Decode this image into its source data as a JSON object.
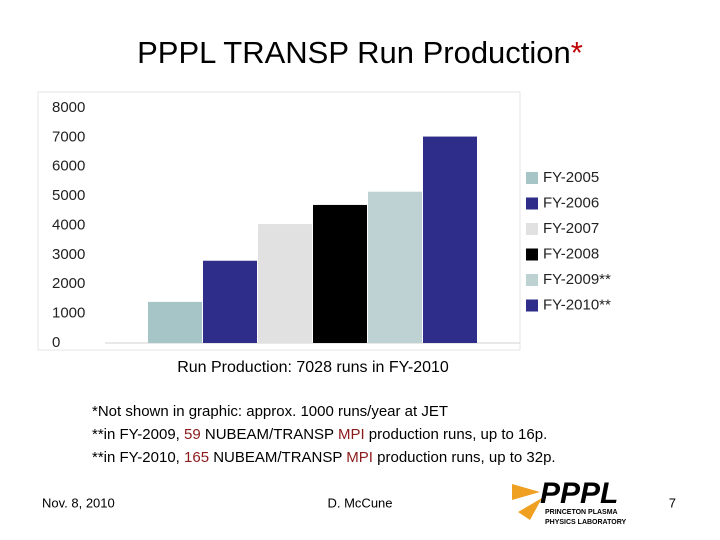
{
  "title": "PPPL TRANSP Run Production",
  "title_mark": "*",
  "title_mark_color": "#c00000",
  "chart_data": {
    "type": "bar",
    "x_label": "Run Production: 7028 runs in FY-2010",
    "series": [
      {
        "name": "FY-2005",
        "color": "#a5c5c7",
        "values": [
          1400
        ]
      },
      {
        "name": "FY-2006",
        "color": "#2e2e8a",
        "values": [
          2800
        ]
      },
      {
        "name": "FY-2007",
        "color": "#e1e1e1",
        "values": [
          4050
        ]
      },
      {
        "name": "FY-2008",
        "color": "#000000",
        "values": [
          4700
        ]
      },
      {
        "name": "FY-2009**",
        "color": "#bed2d4",
        "values": [
          5150
        ]
      },
      {
        "name": "FY-2010**",
        "color": "#2e2e8a",
        "values": [
          7028
        ]
      }
    ],
    "ylim": [
      0,
      8000
    ],
    "yticks": [
      0,
      1000,
      2000,
      3000,
      4000,
      5000,
      6000,
      7000,
      8000
    ],
    "grid": false,
    "legend": "right"
  },
  "notes": [
    [
      {
        "text": "*Not shown in graphic: approx. 1000 runs/year at JET"
      }
    ],
    [
      {
        "text": "**in FY-2009, "
      },
      {
        "text": "59",
        "color": "#8b1a1a"
      },
      {
        "text": " NUBEAM/TRANSP "
      },
      {
        "text": "MPI",
        "color": "#8b1a1a"
      },
      {
        "text": " production runs, up to 16p."
      }
    ],
    [
      {
        "text": "**in FY-2010, "
      },
      {
        "text": "165",
        "color": "#8b1a1a"
      },
      {
        "text": " NUBEAM/TRANSP "
      },
      {
        "text": "MPI",
        "color": "#8b1a1a"
      },
      {
        "text": " production runs, up to 32p."
      }
    ]
  ],
  "footer": {
    "date": "Nov. 8, 2010",
    "author": "D. McCune",
    "page": "7"
  },
  "logo": {
    "name": "PPPL",
    "line1": "PRINCETON PLASMA",
    "line2": "PHYSICS LABORATORY"
  }
}
